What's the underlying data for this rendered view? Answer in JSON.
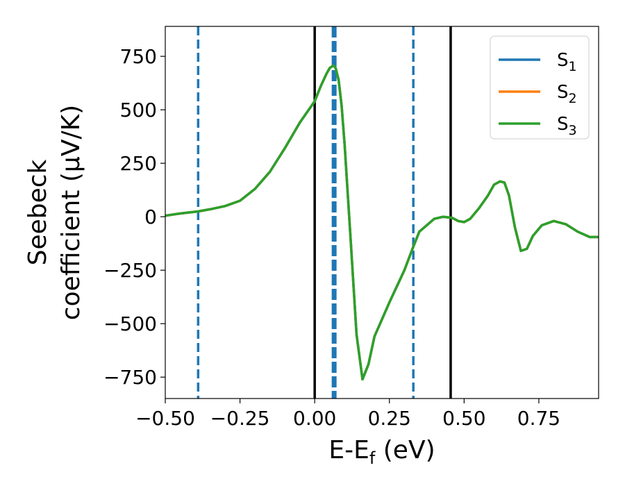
{
  "chart_data": {
    "type": "line",
    "xlabel": {
      "main": "E-E",
      "sub": "f",
      "unit": " (eV)"
    },
    "ylabel": {
      "line1": "Seebeck",
      "line2": "coefficient  (μV/K)"
    },
    "xlim": [
      -0.5,
      0.95
    ],
    "ylim": [
      -850,
      890
    ],
    "xticks": [
      -0.5,
      -0.25,
      0.0,
      0.25,
      0.5,
      0.75
    ],
    "xtick_labels": [
      "−0.50",
      "−0.25",
      "0.00",
      "0.25",
      "0.50",
      "0.75"
    ],
    "yticks": [
      -750,
      -500,
      -250,
      0,
      250,
      500,
      750
    ],
    "ytick_labels": [
      "−750",
      "−500",
      "−250",
      "0",
      "250",
      "500",
      "750"
    ],
    "grid": false,
    "legend_position": "top-right",
    "x": [
      -0.5,
      -0.45,
      -0.42,
      -0.39,
      -0.35,
      -0.3,
      -0.25,
      -0.2,
      -0.15,
      -0.1,
      -0.05,
      0.0,
      0.02,
      0.04,
      0.05,
      0.06,
      0.065,
      0.07,
      0.08,
      0.09,
      0.1,
      0.12,
      0.14,
      0.16,
      0.18,
      0.2,
      0.25,
      0.3,
      0.33,
      0.35,
      0.4,
      0.43,
      0.46,
      0.48,
      0.5,
      0.52,
      0.55,
      0.58,
      0.6,
      0.62,
      0.635,
      0.65,
      0.67,
      0.69,
      0.71,
      0.73,
      0.76,
      0.8,
      0.84,
      0.88,
      0.92,
      0.95
    ],
    "series": [
      {
        "name": "S",
        "sub": "1",
        "color": "#1f77b4",
        "values": [
          5,
          15,
          20,
          25,
          35,
          50,
          75,
          130,
          210,
          320,
          440,
          540,
          610,
          670,
          695,
          705,
          705,
          695,
          640,
          520,
          340,
          -100,
          -550,
          -760,
          -690,
          -560,
          -400,
          -250,
          -140,
          -70,
          -10,
          0,
          -5,
          -20,
          -25,
          -10,
          40,
          100,
          150,
          165,
          160,
          100,
          -50,
          -160,
          -150,
          -90,
          -40,
          -20,
          -35,
          -70,
          -95,
          -95
        ]
      },
      {
        "name": "S",
        "sub": "2",
        "color": "#ff7f0e",
        "values": [
          5,
          15,
          20,
          25,
          35,
          50,
          75,
          130,
          210,
          320,
          440,
          540,
          610,
          670,
          695,
          705,
          705,
          695,
          640,
          520,
          340,
          -100,
          -550,
          -760,
          -690,
          -560,
          -400,
          -250,
          -140,
          -70,
          -10,
          0,
          -5,
          -20,
          -25,
          -10,
          40,
          100,
          150,
          165,
          160,
          100,
          -50,
          -160,
          -150,
          -90,
          -40,
          -20,
          -35,
          -70,
          -95,
          -95
        ]
      },
      {
        "name": "S",
        "sub": "3",
        "color": "#2ca02c",
        "values": [
          5,
          15,
          20,
          25,
          35,
          50,
          75,
          130,
          210,
          320,
          440,
          540,
          610,
          670,
          695,
          705,
          705,
          695,
          640,
          520,
          340,
          -100,
          -550,
          -760,
          -690,
          -560,
          -400,
          -250,
          -140,
          -70,
          -10,
          0,
          -5,
          -20,
          -25,
          -10,
          40,
          100,
          150,
          165,
          160,
          100,
          -50,
          -160,
          -150,
          -90,
          -40,
          -20,
          -35,
          -70,
          -95,
          -95
        ]
      }
    ],
    "vlines": [
      {
        "x": -0.39,
        "style": "dashed",
        "color": "#1f77b4"
      },
      {
        "x": 0.0,
        "style": "solid",
        "color": "#000000"
      },
      {
        "x": 0.065,
        "style": "dashed-thick",
        "color": "#1f77b4"
      },
      {
        "x": 0.33,
        "style": "dashed",
        "color": "#1f77b4"
      },
      {
        "x": 0.455,
        "style": "solid",
        "color": "#000000"
      }
    ]
  }
}
